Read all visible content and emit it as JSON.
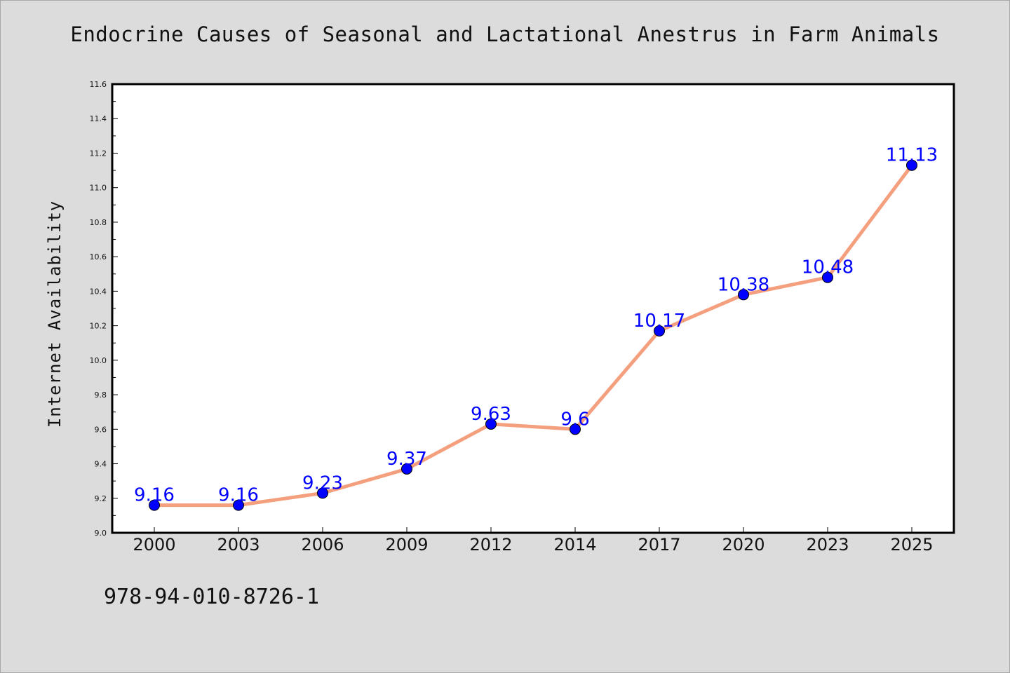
{
  "chart_data": {
    "type": "line",
    "title": "Endocrine Causes of Seasonal and Lactational Anestrus in Farm Animals",
    "xlabel": "",
    "ylabel": "Internet Availability",
    "categories": [
      "2000",
      "2003",
      "2006",
      "2009",
      "2012",
      "2014",
      "2017",
      "2020",
      "2023",
      "2025"
    ],
    "series": [
      {
        "values": [
          9.16,
          9.16,
          9.23,
          9.37,
          9.63,
          9.6,
          10.17,
          10.38,
          10.48,
          11.13
        ],
        "line_color": "#f4a07e",
        "marker_color": "#0000ff"
      }
    ],
    "data_labels": [
      "9.16",
      "9.16",
      "9.23",
      "9.37",
      "9.63",
      "9.6",
      "10.17",
      "10.38",
      "10.48",
      "11.13"
    ],
    "ylim": [
      9.0,
      11.6
    ],
    "yticks": [
      "9.0",
      "9.2",
      "9.4",
      "9.6",
      "9.8",
      "10.0",
      "10.2",
      "10.4",
      "10.6",
      "10.8",
      "11.0",
      "11.2",
      "11.4",
      "11.6"
    ],
    "grid": false,
    "legend": "none"
  },
  "footer": {
    "isbn": "978-94-010-8726-1"
  },
  "colors": {
    "background": "#dcdcdc",
    "plot_background": "#ffffff",
    "line": "#f4a07e",
    "marker": "#0000ff",
    "data_label": "#0000ff"
  }
}
